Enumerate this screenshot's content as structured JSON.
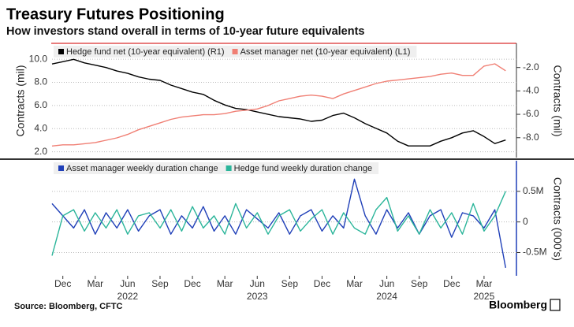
{
  "chart_data": [
    {
      "type": "line",
      "title": "Treasury Futures Positioning",
      "subtitle": "How investors stand overall in terms of 10-year future equivalents",
      "x": [
        "2021-11",
        "2021-12",
        "2022-01",
        "2022-02",
        "2022-03",
        "2022-04",
        "2022-05",
        "2022-06",
        "2022-07",
        "2022-08",
        "2022-09",
        "2022-10",
        "2022-11",
        "2022-12",
        "2023-01",
        "2023-02",
        "2023-03",
        "2023-04",
        "2023-05",
        "2023-06",
        "2023-07",
        "2023-08",
        "2023-09",
        "2023-10",
        "2023-11",
        "2023-12",
        "2024-01",
        "2024-02",
        "2024-03",
        "2024-04",
        "2024-05",
        "2024-06",
        "2024-07",
        "2024-08",
        "2024-09",
        "2024-10",
        "2024-11",
        "2024-12",
        "2025-01",
        "2025-02",
        "2025-03",
        "2025-04",
        "2025-05"
      ],
      "xlim": [
        "2021-11",
        "2025-06"
      ],
      "ylabel": "Contracts (mil)",
      "y2label": "Contracts (mil)",
      "ylim": [
        1.5,
        11.3
      ],
      "yticks": [
        {
          "value": 2,
          "label": "2.0"
        },
        {
          "value": 4,
          "label": "4.0"
        },
        {
          "value": 6,
          "label": "6.0"
        },
        {
          "value": 8,
          "label": "8.0"
        },
        {
          "value": 10,
          "label": "10.0"
        }
      ],
      "y2lim": [
        -9.7,
        0
      ],
      "y2ticks": [
        {
          "value": -8,
          "label": "-8.0"
        },
        {
          "value": -6,
          "label": "-6.0"
        },
        {
          "value": -4,
          "label": "-4.0"
        },
        {
          "value": -2,
          "label": "-2.0"
        }
      ],
      "grid": true,
      "legend": "upper left",
      "series": [
        {
          "name": "Hedge fund net (10-year equivalent) (R1)",
          "color": "#000000",
          "axis": "y2",
          "values": [
            -1.7,
            -1.5,
            -1.3,
            -1.6,
            -1.8,
            -2.0,
            -2.3,
            -2.5,
            -2.8,
            -3.0,
            -3.1,
            -3.5,
            -3.8,
            -4.1,
            -4.3,
            -4.8,
            -5.2,
            -5.5,
            -5.6,
            -5.8,
            -6.0,
            -6.2,
            -6.3,
            -6.4,
            -6.6,
            -6.5,
            -6.1,
            -5.9,
            -6.3,
            -6.8,
            -7.2,
            -7.6,
            -8.3,
            -8.7,
            -8.7,
            -8.7,
            -8.3,
            -8.0,
            -7.6,
            -7.4,
            -7.9,
            -8.5,
            -8.2
          ]
        },
        {
          "name": "Asset manager net (10-year equivalent) (L1)",
          "color": "#f07f74",
          "values": [
            2.5,
            2.6,
            2.6,
            2.7,
            2.8,
            3.0,
            3.2,
            3.5,
            3.9,
            4.2,
            4.5,
            4.8,
            5.0,
            5.1,
            5.2,
            5.2,
            5.3,
            5.5,
            5.6,
            5.7,
            6.0,
            6.4,
            6.6,
            6.8,
            6.9,
            6.8,
            6.6,
            7.0,
            7.3,
            7.6,
            7.9,
            8.1,
            8.2,
            8.3,
            8.4,
            8.5,
            8.7,
            8.8,
            8.6,
            8.6,
            9.4,
            9.6,
            9.0
          ]
        }
      ]
    },
    {
      "type": "line",
      "x": [
        "2021-11",
        "2021-12",
        "2022-01",
        "2022-02",
        "2022-03",
        "2022-04",
        "2022-05",
        "2022-06",
        "2022-07",
        "2022-08",
        "2022-09",
        "2022-10",
        "2022-11",
        "2022-12",
        "2023-01",
        "2023-02",
        "2023-03",
        "2023-04",
        "2023-05",
        "2023-06",
        "2023-07",
        "2023-08",
        "2023-09",
        "2023-10",
        "2023-11",
        "2023-12",
        "2024-01",
        "2024-02",
        "2024-03",
        "2024-04",
        "2024-05",
        "2024-06",
        "2024-07",
        "2024-08",
        "2024-09",
        "2024-10",
        "2024-11",
        "2024-12",
        "2025-01",
        "2025-02",
        "2025-03",
        "2025-04",
        "2025-05"
      ],
      "xlim": [
        "2021-11",
        "2025-06"
      ],
      "xticks": [
        {
          "value": "2021-12",
          "label": "Dec"
        },
        {
          "value": "2022-03",
          "label": "Mar"
        },
        {
          "value": "2022-06",
          "label": "Jun"
        },
        {
          "value": "2022-09",
          "label": "Sep"
        },
        {
          "value": "2022-12",
          "label": "Dec"
        },
        {
          "value": "2023-03",
          "label": "Mar"
        },
        {
          "value": "2023-06",
          "label": "Jun"
        },
        {
          "value": "2023-09",
          "label": "Sep"
        },
        {
          "value": "2023-12",
          "label": "Dec"
        },
        {
          "value": "2024-03",
          "label": "Mar"
        },
        {
          "value": "2024-06",
          "label": "Jun"
        },
        {
          "value": "2024-09",
          "label": "Sep"
        },
        {
          "value": "2024-12",
          "label": "Dec"
        },
        {
          "value": "2025-03",
          "label": "Mar"
        }
      ],
      "xtick_groups": [
        {
          "value": "2022-06",
          "label": "2022"
        },
        {
          "value": "2023-06",
          "label": "2023"
        },
        {
          "value": "2024-06",
          "label": "2024"
        },
        {
          "value": "2025-03",
          "label": "2025"
        }
      ],
      "y2label": "Contracts (000's)",
      "y2lim": [
        -0.88,
        1.0
      ],
      "y2ticks": [
        {
          "value": -0.5,
          "label": "-0.5M"
        },
        0,
        {
          "value": 0.5,
          "label": "0.5M"
        }
      ],
      "grid": true,
      "legend": "upper left",
      "series": [
        {
          "name": "Asset manager weekly duration change",
          "color": "#1f3fb8",
          "axis": "y2",
          "values": [
            0.3,
            0.1,
            -0.1,
            0.2,
            -0.2,
            0.15,
            -0.1,
            0.2,
            -0.15,
            0.1,
            0.2,
            -0.2,
            0.1,
            -0.1,
            0.25,
            -0.15,
            0.1,
            -0.2,
            0.2,
            0.05,
            -0.1,
            0.15,
            -0.2,
            0.1,
            0.2,
            -0.15,
            0.1,
            -0.1,
            0.7,
            0.1,
            -0.2,
            0.2,
            -0.1,
            0.15,
            -0.2,
            0.1,
            0.2,
            -0.25,
            0.15,
            0.1,
            -0.1,
            0.2,
            -0.75
          ]
        },
        {
          "name": "Hedge fund weekly duration change",
          "color": "#2bb59a",
          "axis": "y2",
          "values": [
            -0.55,
            0.1,
            0.2,
            -0.15,
            0.15,
            -0.1,
            0.2,
            -0.2,
            0.1,
            0.15,
            -0.1,
            0.2,
            -0.15,
            0.25,
            -0.1,
            0.1,
            -0.2,
            0.3,
            -0.1,
            0.15,
            -0.2,
            0.1,
            0.2,
            -0.15,
            0.05,
            0.2,
            -0.2,
            0.15,
            -0.1,
            -0.2,
            0.2,
            0.4,
            -0.15,
            0.1,
            -0.2,
            0.2,
            -0.1,
            0.15,
            -0.2,
            0.3,
            -0.15,
            0.1,
            0.5
          ]
        }
      ]
    }
  ],
  "source": "Source: Bloomberg, CFTC",
  "brand": "Bloomberg"
}
